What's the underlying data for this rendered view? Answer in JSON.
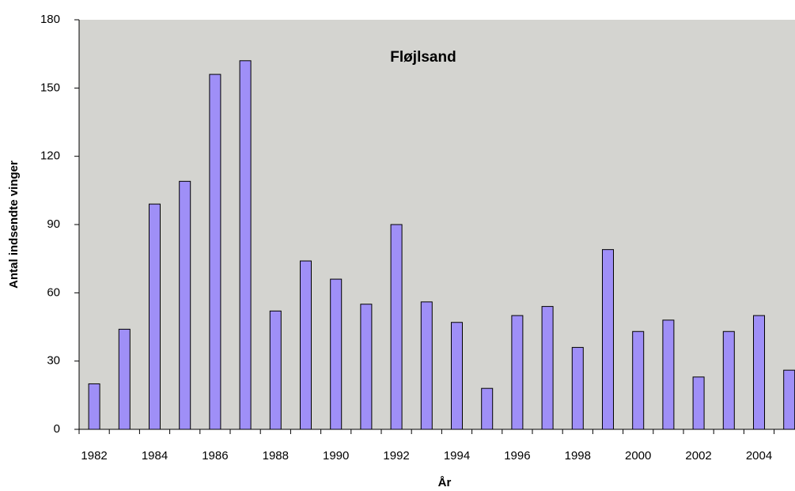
{
  "chart_data": {
    "type": "bar",
    "title": "Fløjlsand",
    "x_label": "År",
    "y_label": "Antal indsendte vinger",
    "categories": [
      "1982",
      null,
      "1984",
      null,
      "1986",
      null,
      "1988",
      null,
      "1990",
      null,
      "1992",
      null,
      "1994",
      null,
      "1996",
      null,
      "1998",
      null,
      "2000",
      null,
      "2002",
      null,
      "2004",
      null
    ],
    "values": [
      20,
      44,
      99,
      109,
      156,
      162,
      52,
      74,
      66,
      55,
      90,
      56,
      47,
      18,
      50,
      54,
      36,
      79,
      43,
      48,
      23,
      43,
      50,
      26
    ],
    "color": "#9f8ff7",
    "ylim": [
      0,
      180
    ],
    "yticks": [
      0,
      30,
      60,
      90,
      120,
      150,
      180
    ],
    "grid": false
  }
}
